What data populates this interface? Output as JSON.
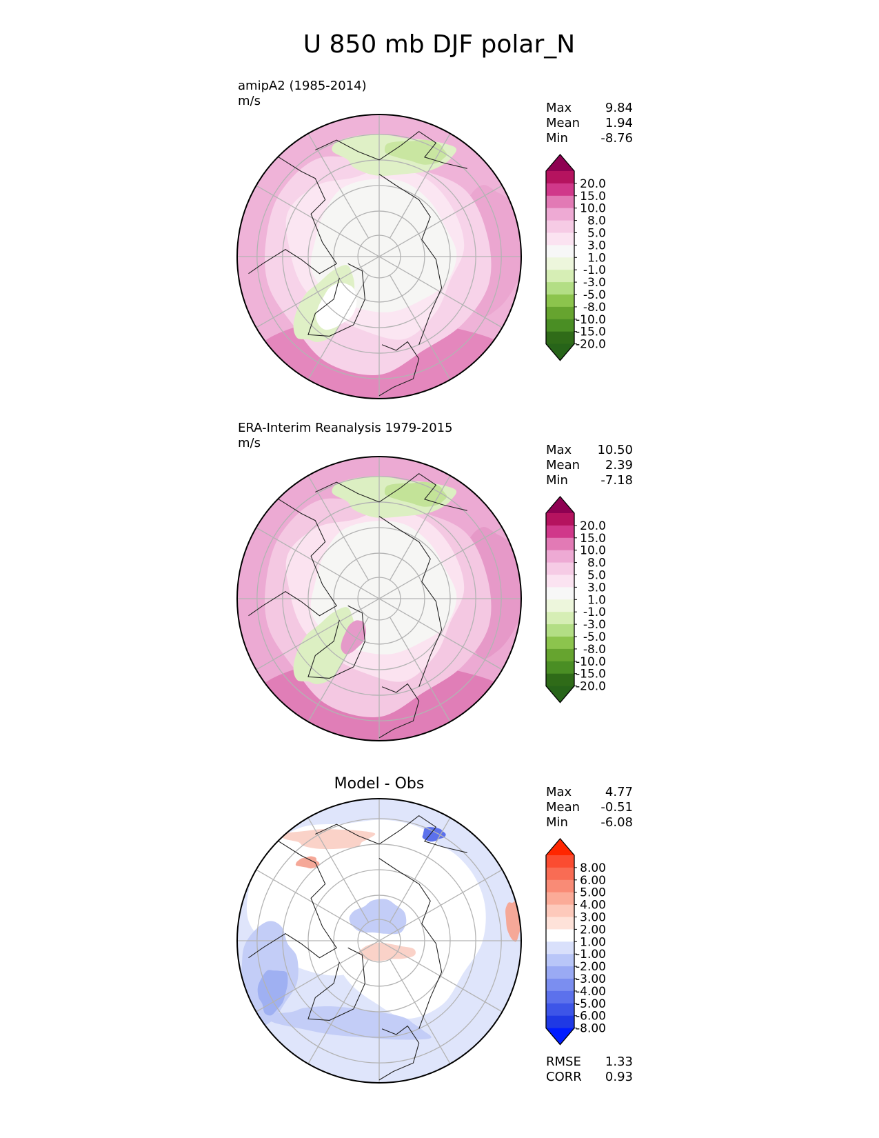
{
  "title": "U 850 mb DJF polar_N",
  "panels": [
    {
      "id": "test",
      "heading": "amipA2 (1985-2014)",
      "units": "m/s",
      "stats": [
        {
          "label": "Max",
          "value": "9.84"
        },
        {
          "label": "Mean",
          "value": "1.94"
        },
        {
          "label": "Min",
          "value": "-8.76"
        }
      ],
      "colorbar": {
        "labels": [
          "20.0",
          "15.0",
          "10.0",
          "8.0",
          "5.0",
          "3.0",
          "1.0",
          "-1.0",
          "-3.0",
          "-5.0",
          "-8.0",
          "-10.0",
          "-15.0",
          "-20.0"
        ],
        "colors": [
          "#8e0152",
          "#b5135f",
          "#d0388a",
          "#e27ab5",
          "#eeaad4",
          "#f6cbe5",
          "#fbe3f1",
          "#f7f7f7",
          "#edf6dc",
          "#d6eeb5",
          "#b3de85",
          "#8cc44d",
          "#66a42f",
          "#4a8e24",
          "#2f6b18",
          "#276419"
        ]
      },
      "extra_stats": [],
      "zones": {
        "outer_pink": "#efb3d8",
        "mid_pink": "#f7d3e9",
        "light_pink": "#fbe6f2",
        "near_white": "#f6f6f4",
        "light_green": "#dff0c6",
        "green": "#c9e6a1",
        "deep_pink": "#e487bd"
      }
    },
    {
      "id": "reference",
      "heading": "ERA-Interim Reanalysis 1979-2015",
      "units": "m/s",
      "stats": [
        {
          "label": "Max",
          "value": "10.50"
        },
        {
          "label": "Mean",
          "value": "2.39"
        },
        {
          "label": "Min",
          "value": "-7.18"
        }
      ],
      "colorbar": {
        "labels": [
          "20.0",
          "15.0",
          "10.0",
          "8.0",
          "5.0",
          "3.0",
          "1.0",
          "-1.0",
          "-3.0",
          "-5.0",
          "-8.0",
          "-10.0",
          "-15.0",
          "-20.0"
        ],
        "colors": [
          "#8e0152",
          "#b5135f",
          "#d0388a",
          "#e27ab5",
          "#eeaad4",
          "#f6cbe5",
          "#fbe3f1",
          "#f7f7f7",
          "#edf6dc",
          "#d6eeb5",
          "#b3de85",
          "#8cc44d",
          "#66a42f",
          "#4a8e24",
          "#2f6b18",
          "#276419"
        ]
      },
      "extra_stats": [],
      "zones": {
        "outer_pink": "#ecaad3",
        "mid_pink": "#f4c8e2",
        "light_pink": "#fbe3f0",
        "near_white": "#f6f6f4",
        "light_green": "#dcefc2",
        "green": "#c3e398",
        "deep_pink": "#e07eb7"
      }
    },
    {
      "id": "diff",
      "heading": "Model - Obs",
      "units": "",
      "stats": [
        {
          "label": "Max",
          "value": "4.77"
        },
        {
          "label": "Mean",
          "value": "-0.51"
        },
        {
          "label": "Min",
          "value": "-6.08"
        }
      ],
      "colorbar": {
        "labels": [
          "8.00",
          "6.00",
          "5.00",
          "4.00",
          "3.00",
          "2.00",
          "1.00",
          "-1.00",
          "-2.00",
          "-3.00",
          "-4.00",
          "-5.00",
          "-6.00",
          "-8.00"
        ],
        "colors": [
          "#ff2600",
          "#fb4c31",
          "#f96c54",
          "#f98b76",
          "#fbab98",
          "#fdc9bb",
          "#fee2d9",
          "#ffffff",
          "#d9e0fb",
          "#b9c6f8",
          "#9aaaf4",
          "#7b8ef0",
          "#5c71ec",
          "#3d55e8",
          "#1f39e4",
          "#001cff"
        ]
      },
      "extra_stats": [
        {
          "label": "RMSE",
          "value": "1.33"
        },
        {
          "label": "CORR",
          "value": "0.93"
        }
      ],
      "zones": {
        "outer": "#dfe5fb",
        "white": "#ffffff",
        "blue": "#c3cdf7",
        "deep_blue": "#9fb0f2",
        "red": "#fad2c8",
        "deep_red": "#f5a898"
      }
    }
  ],
  "chart_data": {
    "type": "heatmap",
    "projection": "polar stereographic, North Pole",
    "variable": "U 850 mb",
    "season": "DJF",
    "panels": [
      {
        "name": "amipA2 (1985-2014)",
        "units": "m/s",
        "max": 9.84,
        "mean": 1.94,
        "min": -8.76,
        "levels": [
          -20,
          -15,
          -10,
          -8,
          -5,
          -3,
          -1,
          1,
          3,
          5,
          8,
          10,
          15,
          20
        ]
      },
      {
        "name": "ERA-Interim Reanalysis 1979-2015",
        "units": "m/s",
        "max": 10.5,
        "mean": 2.39,
        "min": -7.18,
        "levels": [
          -20,
          -15,
          -10,
          -8,
          -5,
          -3,
          -1,
          1,
          3,
          5,
          8,
          10,
          15,
          20
        ]
      },
      {
        "name": "Model - Obs",
        "max": 4.77,
        "mean": -0.51,
        "min": -6.08,
        "rmse": 1.33,
        "corr": 0.93,
        "levels": [
          -8,
          -6,
          -5,
          -4,
          -3,
          -2,
          -1,
          1,
          2,
          3,
          4,
          5,
          6,
          8
        ]
      }
    ]
  }
}
